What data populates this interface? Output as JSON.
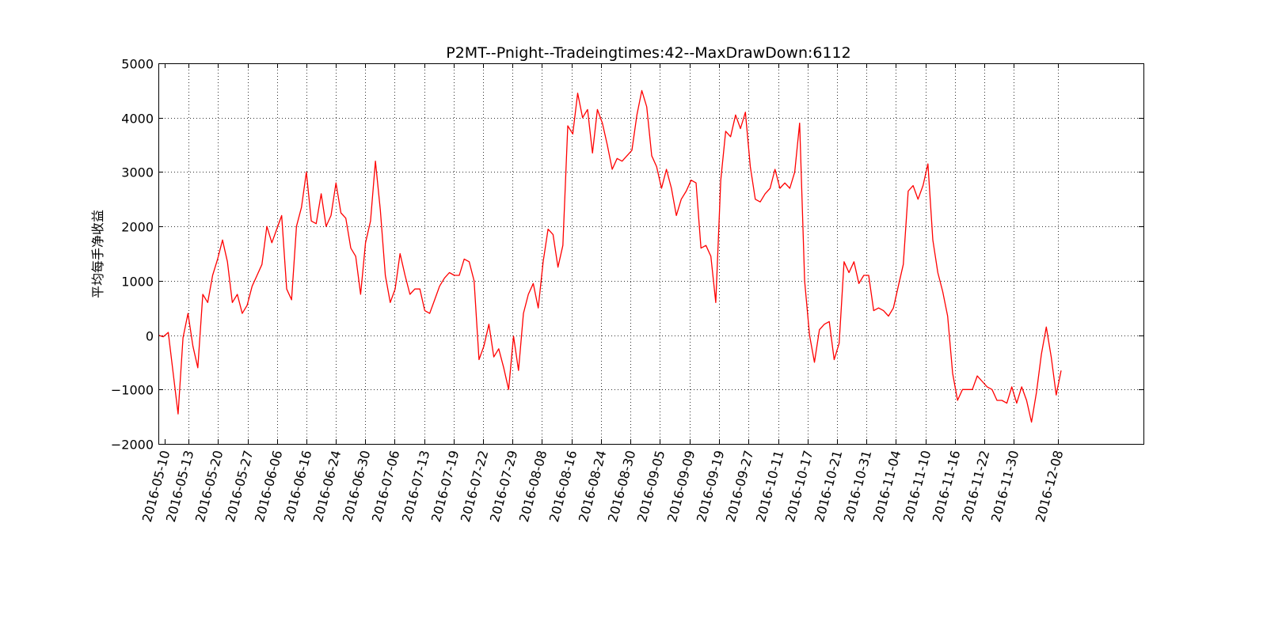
{
  "chart_data": {
    "type": "line",
    "title": "P2MT--Pnight--Tradeingtimes:42--MaxDrawDown:6112",
    "xlabel": "",
    "ylabel": "平均每手净收益",
    "ylim": [
      -2000,
      5000
    ],
    "yticks": [
      "5000",
      "4000",
      "3000",
      "2000",
      "1000",
      "0",
      "−1000",
      "−2000"
    ],
    "grid": true,
    "x_tick_labels": [
      "2016-05-10",
      "2016-05-13",
      "2016-05-20",
      "2016-05-27",
      "2016-06-06",
      "2016-06-16",
      "2016-06-24",
      "2016-06-30",
      "2016-07-06",
      "2016-07-13",
      "2016-07-19",
      "2016-07-22",
      "2016-07-29",
      "2016-08-08",
      "2016-08-16",
      "2016-08-24",
      "2016-08-30",
      "2016-09-05",
      "2016-09-09",
      "2016-09-19",
      "2016-09-27",
      "2016-10-11",
      "2016-10-17",
      "2016-10-21",
      "2016-10-31",
      "2016-11-04",
      "2016-11-10",
      "2016-11-16",
      "2016-11-22",
      "2016-11-30",
      "2016-12-08"
    ],
    "series": [
      {
        "name": "",
        "color": "#ff0000",
        "values": [
          0,
          -30,
          50,
          -700,
          -1450,
          -50,
          400,
          -200,
          -600,
          750,
          600,
          1100,
          1400,
          1750,
          1350,
          600,
          750,
          400,
          550,
          900,
          1100,
          1300,
          2000,
          1700,
          1950,
          2200,
          850,
          650,
          2000,
          2350,
          3000,
          2100,
          2050,
          2600,
          2000,
          2200,
          2800,
          2250,
          2150,
          1600,
          1450,
          750,
          1700,
          2100,
          3200,
          2300,
          1100,
          600,
          850,
          1500,
          1100,
          750,
          850,
          850,
          450,
          400,
          650,
          900,
          1050,
          1150,
          1100,
          1100,
          1400,
          1350,
          1000,
          -450,
          -200,
          200,
          -400,
          -250,
          -600,
          -1000,
          -20,
          -650,
          400,
          750,
          950,
          500,
          1350,
          1950,
          1850,
          1250,
          1650,
          3850,
          3700,
          4450,
          4000,
          4150,
          3350,
          4150,
          3900,
          3500,
          3050,
          3250,
          3200,
          3300,
          3400,
          4050,
          4500,
          4200,
          3300,
          3100,
          2700,
          3050,
          2700,
          2200,
          2500,
          2650,
          2850,
          2800,
          1600,
          1650,
          1450,
          600,
          2850,
          3750,
          3650,
          4050,
          3800,
          4100,
          3100,
          2500,
          2450,
          2600,
          2700,
          3050,
          2700,
          2800,
          2700,
          3000,
          3900,
          1000,
          0,
          -500,
          100,
          200,
          250,
          -450,
          -150,
          1350,
          1150,
          1350,
          950,
          1100,
          1100,
          450,
          500,
          450,
          350,
          500,
          900,
          1300,
          2650,
          2750,
          2500,
          2750,
          3150,
          1750,
          1150,
          800,
          350,
          -700,
          -1200,
          -1000,
          -1000,
          -1000,
          -750,
          -850,
          -950,
          -1000,
          -1200,
          -1200,
          -1250,
          -950,
          -1250,
          -950,
          -1200,
          -1600,
          -1050,
          -350,
          150,
          -400,
          -1100,
          -650
        ]
      }
    ]
  }
}
